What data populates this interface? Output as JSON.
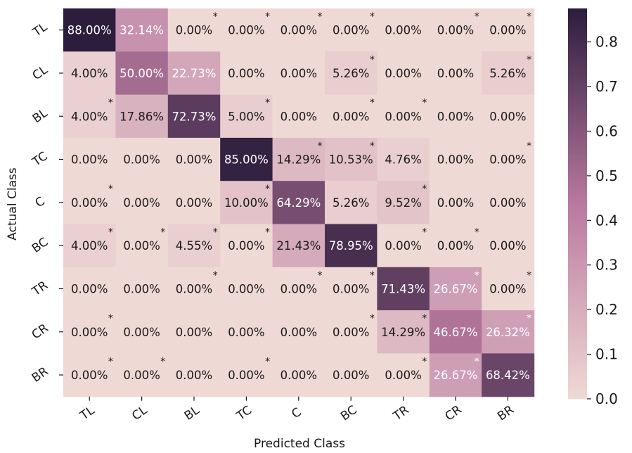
{
  "chart_data": {
    "type": "heatmap",
    "title": "",
    "xlabel": "Predicted Class",
    "ylabel": "Actual Class",
    "x_categories": [
      "TL",
      "CL",
      "BL",
      "TC",
      "C",
      "BC",
      "TR",
      "CR",
      "BR"
    ],
    "y_categories": [
      "TL",
      "CL",
      "BL",
      "TC",
      "C",
      "BC",
      "TR",
      "CR",
      "BR"
    ],
    "values": [
      [
        88.0,
        32.14,
        0.0,
        0.0,
        0.0,
        0.0,
        0.0,
        0.0,
        0.0
      ],
      [
        4.0,
        50.0,
        22.73,
        0.0,
        0.0,
        5.26,
        0.0,
        0.0,
        5.26
      ],
      [
        4.0,
        17.86,
        72.73,
        5.0,
        0.0,
        0.0,
        0.0,
        0.0,
        0.0
      ],
      [
        0.0,
        0.0,
        0.0,
        85.0,
        14.29,
        10.53,
        4.76,
        0.0,
        0.0
      ],
      [
        0.0,
        0.0,
        0.0,
        10.0,
        64.29,
        5.26,
        9.52,
        0.0,
        0.0
      ],
      [
        4.0,
        0.0,
        4.55,
        0.0,
        21.43,
        78.95,
        0.0,
        0.0,
        0.0
      ],
      [
        0.0,
        0.0,
        0.0,
        0.0,
        0.0,
        0.0,
        71.43,
        26.67,
        0.0
      ],
      [
        0.0,
        0.0,
        0.0,
        0.0,
        0.0,
        0.0,
        14.29,
        46.67,
        26.32
      ],
      [
        0.0,
        0.0,
        0.0,
        0.0,
        0.0,
        0.0,
        0.0,
        26.67,
        68.42
      ]
    ],
    "cell_labels": [
      [
        "88.00%",
        "32.14%",
        "0.00%",
        "0.00%",
        "0.00%",
        "0.00%",
        "0.00%",
        "0.00%",
        "0.00%"
      ],
      [
        "4.00%",
        "50.00%",
        "22.73%",
        "0.00%",
        "0.00%",
        "5.26%",
        "0.00%",
        "0.00%",
        "5.26%"
      ],
      [
        "4.00%",
        "17.86%",
        "72.73%",
        "5.00%",
        "0.00%",
        "0.00%",
        "0.00%",
        "0.00%",
        "0.00%"
      ],
      [
        "0.00%",
        "0.00%",
        "0.00%",
        "85.00%",
        "14.29%",
        "10.53%",
        "4.76%",
        "0.00%",
        "0.00%"
      ],
      [
        "0.00%",
        "0.00%",
        "0.00%",
        "10.00%",
        "64.29%",
        "5.26%",
        "9.52%",
        "0.00%",
        "0.00%"
      ],
      [
        "4.00%",
        "0.00%",
        "4.55%",
        "0.00%",
        "21.43%",
        "78.95%",
        "0.00%",
        "0.00%",
        "0.00%"
      ],
      [
        "0.00%",
        "0.00%",
        "0.00%",
        "0.00%",
        "0.00%",
        "0.00%",
        "71.43%",
        "26.67%",
        "0.00%"
      ],
      [
        "0.00%",
        "0.00%",
        "0.00%",
        "0.00%",
        "0.00%",
        "0.00%",
        "14.29%",
        "46.67%",
        "26.32%"
      ],
      [
        "0.00%",
        "0.00%",
        "0.00%",
        "0.00%",
        "0.00%",
        "0.00%",
        "0.00%",
        "26.67%",
        "68.42%"
      ]
    ],
    "significance_marks": [
      [
        0,
        0,
        1,
        1,
        1,
        1,
        0,
        1,
        1
      ],
      [
        0,
        0,
        0,
        0,
        0,
        1,
        0,
        0,
        1
      ],
      [
        1,
        0,
        0,
        1,
        0,
        1,
        1,
        0,
        0
      ],
      [
        0,
        0,
        0,
        0,
        1,
        1,
        0,
        0,
        1
      ],
      [
        1,
        0,
        0,
        1,
        0,
        0,
        1,
        0,
        0
      ],
      [
        1,
        1,
        1,
        1,
        0,
        0,
        1,
        1,
        0
      ],
      [
        0,
        0,
        1,
        0,
        1,
        1,
        0,
        1,
        1
      ],
      [
        1,
        0,
        0,
        0,
        0,
        1,
        1,
        0,
        1
      ],
      [
        1,
        1,
        0,
        1,
        0,
        0,
        1,
        1,
        0
      ]
    ],
    "significance_symbol": "*",
    "colorbar": {
      "range": [
        0.0,
        0.875
      ],
      "ticks": [
        0.0,
        0.1,
        0.2,
        0.3,
        0.4,
        0.5,
        0.6,
        0.7,
        0.8
      ],
      "tick_labels": [
        "0.0",
        "0.1",
        "0.2",
        "0.3",
        "0.4",
        "0.5",
        "0.6",
        "0.7",
        "0.8"
      ],
      "placement": "right"
    },
    "colormap": {
      "low": "#efd9d5",
      "mid": "#b9799f",
      "high": "#2c1d3d"
    },
    "text_color_dark": "#1a1a1a",
    "text_color_light": "#ffffff"
  }
}
